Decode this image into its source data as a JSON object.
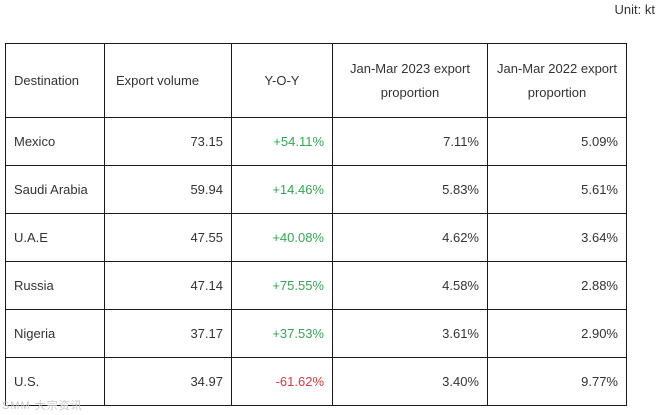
{
  "unit_label": "Unit: kt",
  "table": {
    "headers": [
      "Destination",
      "Export volume",
      "Y-O-Y",
      "Jan-Mar 2023 export proportion",
      "Jan-Mar 2022 export proportion"
    ],
    "rows": [
      {
        "destination": "Mexico",
        "volume": "73.15",
        "yoy": "+54.11%",
        "yoy_sign": "pos",
        "p2023": "7.11%",
        "p2022": "5.09%"
      },
      {
        "destination": "Saudi Arabia",
        "volume": "59.94",
        "yoy": "+14.46%",
        "yoy_sign": "pos",
        "p2023": "5.83%",
        "p2022": "5.61%"
      },
      {
        "destination": "U.A.E",
        "volume": "47.55",
        "yoy": "+40.08%",
        "yoy_sign": "pos",
        "p2023": "4.62%",
        "p2022": "3.64%"
      },
      {
        "destination": "Russia",
        "volume": "47.14",
        "yoy": "+75.55%",
        "yoy_sign": "pos",
        "p2023": "4.58%",
        "p2022": "2.88%"
      },
      {
        "destination": "Nigeria",
        "volume": "37.17",
        "yoy": "+37.53%",
        "yoy_sign": "pos",
        "p2023": "3.61%",
        "p2022": "2.90%"
      },
      {
        "destination": "U.S.",
        "volume": "34.97",
        "yoy": "-61.62%",
        "yoy_sign": "neg",
        "p2023": "3.40%",
        "p2022": "9.77%"
      }
    ]
  },
  "colors": {
    "positive": "#33a853",
    "negative": "#e0383e",
    "text": "#333333",
    "border": "#1a1a1a"
  },
  "watermark": "SMM 大宗资讯"
}
